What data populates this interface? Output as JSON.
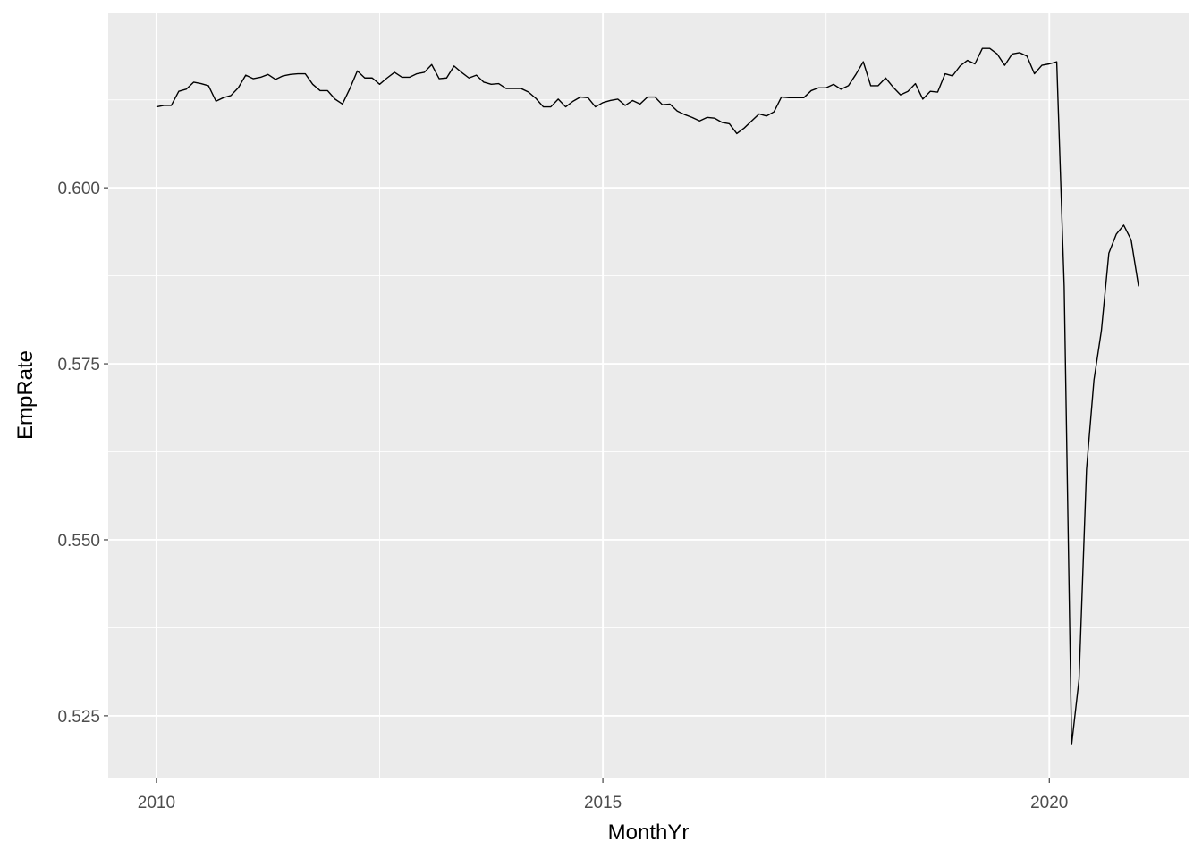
{
  "chart_data": {
    "type": "line",
    "title": "",
    "xlabel": "MonthYr",
    "ylabel": "EmpRate",
    "xlim": [
      2009.46,
      2021.56
    ],
    "ylim": [
      0.5161,
      0.6249
    ],
    "x_ticks": [
      2010,
      2015,
      2020
    ],
    "x_tick_labels": [
      "2010",
      "2015",
      "2020"
    ],
    "y_ticks": [
      0.525,
      0.55,
      0.575,
      0.6
    ],
    "y_tick_labels": [
      "0.525",
      "0.550",
      "0.575",
      "0.600"
    ],
    "grid": true,
    "panel_background": "#ebebeb",
    "line_color": "#000000",
    "x": [
      "2010-01",
      "2010-02",
      "2010-03",
      "2010-04",
      "2010-05",
      "2010-06",
      "2010-07",
      "2010-08",
      "2010-09",
      "2010-10",
      "2010-11",
      "2010-12",
      "2011-01",
      "2011-02",
      "2011-03",
      "2011-04",
      "2011-05",
      "2011-06",
      "2011-07",
      "2011-08",
      "2011-09",
      "2011-10",
      "2011-11",
      "2011-12",
      "2012-01",
      "2012-02",
      "2012-03",
      "2012-04",
      "2012-05",
      "2012-06",
      "2012-07",
      "2012-08",
      "2012-09",
      "2012-10",
      "2012-11",
      "2012-12",
      "2013-01",
      "2013-02",
      "2013-03",
      "2013-04",
      "2013-05",
      "2013-06",
      "2013-07",
      "2013-08",
      "2013-09",
      "2013-10",
      "2013-11",
      "2013-12",
      "2014-01",
      "2014-02",
      "2014-03",
      "2014-04",
      "2014-05",
      "2014-06",
      "2014-07",
      "2014-08",
      "2014-09",
      "2014-10",
      "2014-11",
      "2014-12",
      "2015-01",
      "2015-02",
      "2015-03",
      "2015-04",
      "2015-05",
      "2015-06",
      "2015-07",
      "2015-08",
      "2015-09",
      "2015-10",
      "2015-11",
      "2015-12",
      "2016-01",
      "2016-02",
      "2016-03",
      "2016-04",
      "2016-05",
      "2016-06",
      "2016-07",
      "2016-08",
      "2016-09",
      "2016-10",
      "2016-11",
      "2016-12",
      "2017-01",
      "2017-02",
      "2017-03",
      "2017-04",
      "2017-05",
      "2017-06",
      "2017-07",
      "2017-08",
      "2017-09",
      "2017-10",
      "2017-11",
      "2017-12",
      "2018-01",
      "2018-02",
      "2018-03",
      "2018-04",
      "2018-05",
      "2018-06",
      "2018-07",
      "2018-08",
      "2018-09",
      "2018-10",
      "2018-11",
      "2018-12",
      "2019-01",
      "2019-02",
      "2019-03",
      "2019-04",
      "2019-05",
      "2019-06",
      "2019-07",
      "2019-08",
      "2019-09",
      "2019-10",
      "2019-11",
      "2019-12",
      "2020-01",
      "2020-02",
      "2020-03",
      "2020-04",
      "2020-05",
      "2020-06",
      "2020-07",
      "2020-08",
      "2020-09",
      "2020-10",
      "2020-11",
      "2020-12",
      "2021-01"
    ],
    "y": [
      0.6115,
      0.6117,
      0.6117,
      0.6137,
      0.614,
      0.615,
      0.6148,
      0.6145,
      0.6123,
      0.6128,
      0.6131,
      0.6142,
      0.616,
      0.6155,
      0.6157,
      0.6161,
      0.6154,
      0.6159,
      0.6161,
      0.6162,
      0.6162,
      0.6147,
      0.6138,
      0.6138,
      0.6126,
      0.6119,
      0.6141,
      0.6166,
      0.6156,
      0.6156,
      0.6147,
      0.6156,
      0.6164,
      0.6157,
      0.6157,
      0.6162,
      0.6164,
      0.6175,
      0.6155,
      0.6156,
      0.6173,
      0.6164,
      0.6156,
      0.616,
      0.615,
      0.6147,
      0.6148,
      0.6141,
      0.6141,
      0.6141,
      0.6136,
      0.6127,
      0.6115,
      0.6115,
      0.6126,
      0.6115,
      0.6123,
      0.6129,
      0.6128,
      0.6115,
      0.6121,
      0.6124,
      0.6126,
      0.6117,
      0.6124,
      0.6119,
      0.6129,
      0.6129,
      0.6118,
      0.6119,
      0.6109,
      0.6104,
      0.61,
      0.6095,
      0.61,
      0.6099,
      0.6093,
      0.6091,
      0.6077,
      0.6085,
      0.6095,
      0.6105,
      0.6102,
      0.6108,
      0.6129,
      0.6128,
      0.6128,
      0.6128,
      0.6138,
      0.6142,
      0.6142,
      0.6147,
      0.614,
      0.6145,
      0.6161,
      0.6179,
      0.6145,
      0.6145,
      0.6156,
      0.6143,
      0.6132,
      0.6137,
      0.6148,
      0.6126,
      0.6137,
      0.6136,
      0.6162,
      0.6159,
      0.6173,
      0.6181,
      0.6176,
      0.6198,
      0.6198,
      0.619,
      0.6174,
      0.619,
      0.6192,
      0.6187,
      0.6162,
      0.6174,
      0.6176,
      0.6179,
      0.586,
      0.5209,
      0.5302,
      0.56,
      0.5727,
      0.5797,
      0.5907,
      0.5934,
      0.5947,
      0.5926,
      0.586
    ]
  }
}
